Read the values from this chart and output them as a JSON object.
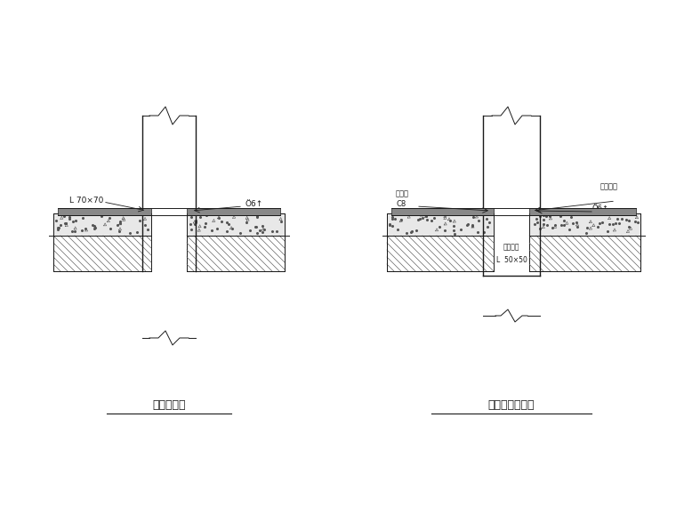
{
  "bg_color": "#ffffff",
  "line_color": "#1a1a1a",
  "title1": "风管穿楼板",
  "title2": "竖风道上接风管",
  "label1_text": "L 70×70",
  "label2_text": "Ö6↑",
  "label3_text": "槽钢框",
  "label4_text": "C8",
  "label5_text": "翻位连接",
  "label6_text": "Ö6↑",
  "label7_text": "型角钢框",
  "label8_text": "L  50×50"
}
